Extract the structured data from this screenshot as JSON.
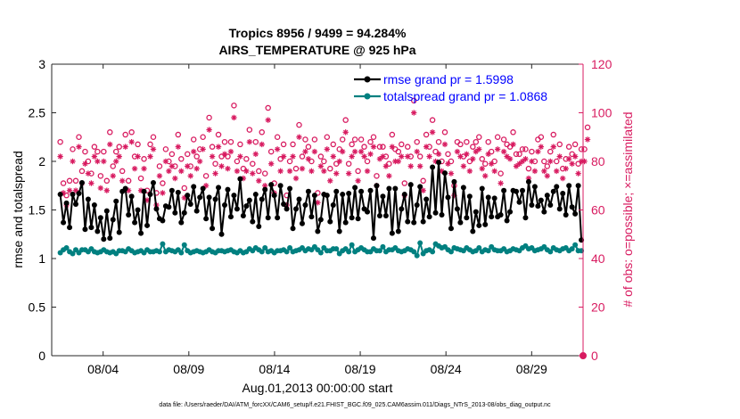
{
  "chart_data": {
    "type": "line",
    "title_line1": "Tropics 8956 / 9499 = 94.284%",
    "title_line2": "AIRS_TEMPERATURE @ 925 hPa",
    "xlabel": "Aug.01,2013 00:00:00 start",
    "ylabel_left": "rmse and totalspread",
    "ylabel_right": "# of obs: o=possible; ×=assimilated",
    "footer": "data file: /Users/raeder/DAI/ATM_forcXX/CAM6_setup/f.e21.FHIST_BGC.f09_025.CAM6assim.011/Diags_NTrS_2013-08/obs_diag_output.nc",
    "x_tick_labels": [
      "08/04",
      "08/09",
      "08/14",
      "08/19",
      "08/24",
      "08/29"
    ],
    "x_tick_days": [
      4,
      9,
      14,
      19,
      24,
      29
    ],
    "xlim": [
      1,
      32
    ],
    "ylim_left": [
      0,
      3
    ],
    "y_ticks_left": [
      "0",
      "0.5",
      "1",
      "1.5",
      "2",
      "2.5",
      "3"
    ],
    "ylim_right": [
      0,
      120
    ],
    "y_ticks_right": [
      "0",
      "20",
      "40",
      "60",
      "80",
      "100",
      "120"
    ],
    "colors": {
      "rmse": "#000000",
      "spread": "#008080",
      "obs": "#d81b60",
      "legend_text": "#0000ff"
    },
    "series": [
      {
        "name": "rmse grand pr = 1.5998",
        "axis": "left",
        "values": [
          1.66,
          1.37,
          1.57,
          1.32,
          1.66,
          1.56,
          1.67,
          1.78,
          1.3,
          1.61,
          1.32,
          1.55,
          1.28,
          1.42,
          1.2,
          1.49,
          1.21,
          1.4,
          1.59,
          1.27,
          1.69,
          1.72,
          1.45,
          1.64,
          1.37,
          1.5,
          1.26,
          1.69,
          1.34,
          1.66,
          1.78,
          1.51,
          1.41,
          1.39,
          1.54,
          1.53,
          1.7,
          1.47,
          1.68,
          1.37,
          1.47,
          1.65,
          1.56,
          1.74,
          1.49,
          1.63,
          1.72,
          1.41,
          1.63,
          1.31,
          1.61,
          1.73,
          1.25,
          1.55,
          1.71,
          1.43,
          1.65,
          1.51,
          1.82,
          1.44,
          1.54,
          1.6,
          1.38,
          1.66,
          1.33,
          1.61,
          1.71,
          1.42,
          1.76,
          1.65,
          1.42,
          1.75,
          1.56,
          1.51,
          1.72,
          1.31,
          1.51,
          1.61,
          1.36,
          1.55,
          1.69,
          1.43,
          1.65,
          1.28,
          1.4,
          1.66,
          1.65,
          1.38,
          1.55,
          1.69,
          1.28,
          1.66,
          1.37,
          1.67,
          1.42,
          1.73,
          1.41,
          1.69,
          1.51,
          1.48,
          1.7,
          1.21,
          1.75,
          1.44,
          1.64,
          1.44,
          1.72,
          1.26,
          1.72,
          1.28,
          1.51,
          1.66,
          1.38,
          1.76,
          1.37,
          1.55,
          1.74,
          1.38,
          1.61,
          1.43,
          1.94,
          1.47,
          1.99,
          1.45,
          1.88,
          1.63,
          1.31,
          1.79,
          1.51,
          1.37,
          1.73,
          1.42,
          1.64,
          1.28,
          1.48,
          1.34,
          1.72,
          1.35,
          1.63,
          1.43,
          1.62,
          1.43,
          1.45,
          1.7,
          1.39,
          1.48,
          1.7,
          1.69,
          1.58,
          1.7,
          1.42,
          1.79,
          1.55,
          1.74,
          1.54,
          1.6,
          1.48,
          1.65,
          1.55,
          1.69,
          1.74,
          1.51,
          1.67,
          1.45,
          1.75,
          1.53,
          1.46,
          1.75,
          1.19
        ]
      },
      {
        "name": "totalspread grand pr = 1.0868",
        "axis": "left",
        "values": [
          1.06,
          1.09,
          1.11,
          1.07,
          1.05,
          1.09,
          1.06,
          1.09,
          1.09,
          1.07,
          1.1,
          1.07,
          1.06,
          1.07,
          1.09,
          1.07,
          1.06,
          1.07,
          1.05,
          1.08,
          1.08,
          1.07,
          1.1,
          1.08,
          1.06,
          1.07,
          1.08,
          1.06,
          1.09,
          1.07,
          1.07,
          1.08,
          1.07,
          1.15,
          1.07,
          1.09,
          1.08,
          1.07,
          1.09,
          1.06,
          1.14,
          1.08,
          1.06,
          1.07,
          1.08,
          1.07,
          1.06,
          1.07,
          1.09,
          1.07,
          1.06,
          1.08,
          1.08,
          1.07,
          1.08,
          1.09,
          1.07,
          1.06,
          1.08,
          1.06,
          1.07,
          1.1,
          1.08,
          1.11,
          1.09,
          1.07,
          1.11,
          1.07,
          1.08,
          1.06,
          1.08,
          1.08,
          1.09,
          1.07,
          1.11,
          1.07,
          1.08,
          1.09,
          1.11,
          1.08,
          1.1,
          1.09,
          1.12,
          1.09,
          1.06,
          1.11,
          1.08,
          1.08,
          1.1,
          1.1,
          1.05,
          1.08,
          1.1,
          1.07,
          1.14,
          1.07,
          1.09,
          1.11,
          1.09,
          1.07,
          1.07,
          1.1,
          1.08,
          1.08,
          1.12,
          1.07,
          1.09,
          1.09,
          1.11,
          1.08,
          1.07,
          1.08,
          1.1,
          1.09,
          1.07,
          1.03,
          1.16,
          1.05,
          1.08,
          1.09,
          1.07,
          1.15,
          1.13,
          1.11,
          1.12,
          1.09,
          1.07,
          1.11,
          1.1,
          1.09,
          1.08,
          1.11,
          1.09,
          1.07,
          1.08,
          1.11,
          1.07,
          1.09,
          1.08,
          1.12,
          1.09,
          1.08,
          1.08,
          1.1,
          1.07,
          1.08,
          1.1,
          1.09,
          1.08,
          1.11,
          1.13,
          1.1,
          1.11,
          1.08,
          1.09,
          1.1,
          1.12,
          1.09,
          1.07,
          1.11,
          1.09,
          1.08,
          1.1,
          1.11,
          1.08,
          1.1,
          1.14,
          1.08,
          1.08
        ]
      },
      {
        "name": "obs possible",
        "axis": "right",
        "marker": "o",
        "values": [
          88,
          71,
          66,
          72,
          85,
          72,
          90,
          76,
          84,
          80,
          75,
          86,
          84,
          74,
          84,
          72,
          92,
          78,
          84,
          86,
          76,
          91,
          72,
          92,
          82,
          87,
          73,
          81,
          68,
          87,
          90,
          67,
          78,
          71,
          85,
          80,
          83,
          78,
          91,
          81,
          69,
          83,
          78,
          89,
          82,
          85,
          90,
          74,
          98,
          86,
          79,
          91,
          82,
          88,
          82,
          88,
          103,
          80,
          87,
          77,
          81,
          93,
          79,
          88,
          76,
          92,
          75,
          102,
          84,
          71,
          90,
          81,
          87,
          66,
          80,
          87,
          77,
          95,
          82,
          89,
          86,
          80,
          89,
          67,
          82,
          80,
          90,
          77,
          87,
          79,
          85,
          89,
          97,
          79,
          87,
          89,
          76,
          89,
          86,
          80,
          88,
          90,
          74,
          86,
          86,
          82,
          79,
          91,
          85,
          84,
          87,
          71,
          86,
          82,
          105,
          88,
          82,
          72,
          91,
          86,
          97,
          84,
          88,
          80,
          92,
          83,
          80,
          70,
          88,
          87,
          82,
          88,
          80,
          86,
          88,
          90,
          81,
          79,
          88,
          84,
          80,
          90,
          75,
          89,
          87,
          86,
          92,
          83,
          83,
          85,
          85,
          77,
          84,
          80,
          89,
          90,
          80,
          78,
          84,
          91,
          80,
          87,
          77,
          81,
          86,
          83,
          87,
          79,
          85,
          85,
          94
        ]
      },
      {
        "name": "obs assimilated",
        "axis": "right",
        "marker": "*",
        "values": [
          82,
          67,
          62,
          68,
          80,
          68,
          86,
          71,
          79,
          75,
          71,
          82,
          80,
          69,
          80,
          68,
          87,
          74,
          80,
          82,
          72,
          86,
          68,
          88,
          77,
          82,
          68,
          77,
          64,
          82,
          85,
          62,
          74,
          67,
          80,
          76,
          78,
          73,
          86,
          76,
          65,
          78,
          74,
          84,
          77,
          80,
          85,
          70,
          93,
          82,
          75,
          86,
          78,
          83,
          77,
          84,
          98,
          76,
          82,
          73,
          76,
          88,
          75,
          83,
          72,
          87,
          70,
          97,
          79,
          67,
          85,
          76,
          82,
          62,
          76,
          82,
          73,
          90,
          77,
          84,
          81,
          76,
          84,
          63,
          78,
          76,
          85,
          72,
          82,
          75,
          80,
          84,
          92,
          75,
          82,
          84,
          72,
          84,
          82,
          76,
          83,
          86,
          70,
          81,
          82,
          78,
          74,
          86,
          80,
          80,
          82,
          66,
          82,
          78,
          100,
          84,
          78,
          68,
          86,
          82,
          92,
          80,
          83,
          76,
          87,
          79,
          75,
          66,
          84,
          82,
          78,
          83,
          76,
          81,
          84,
          85,
          77,
          74,
          83,
          79,
          76,
          85,
          71,
          84,
          82,
          81,
          87,
          78,
          79,
          80,
          81,
          73,
          80,
          76,
          84,
          86,
          76,
          74,
          80,
          86,
          76,
          82,
          73,
          77,
          81,
          79,
          82,
          75,
          80,
          80,
          89
        ]
      }
    ],
    "legend": [
      "rmse grand pr = 1.5998",
      "totalspread grand pr = 1.0868"
    ]
  }
}
